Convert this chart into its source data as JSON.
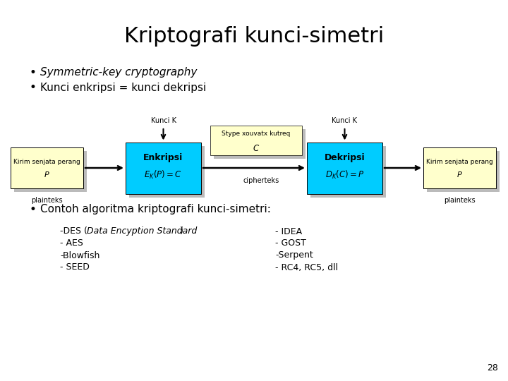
{
  "title": "Kriptografi kunci-simetri",
  "bullet1": "Symmetric-key cryptography",
  "bullet2": "Kunci enkripsi = kunci dekripsi",
  "bullet3": "Contoh algoritma kriptografi kunci-simetri:",
  "kunci_k": "Kunci K",
  "cipher_label_line1": "Stype xouvatx kutreq",
  "cipher_label_line2": "C",
  "cipherteks": "cipherteks",
  "plainteks": "plainteks",
  "enkripsi_title": "Enkripsi",
  "enkripsi_formula": "$E_K(P) = C$",
  "dekripsi_title": "Dekripsi",
  "dekripsi_formula": "$D_K(C) = P$",
  "left_box_line1": "Kirim senjata perang",
  "left_box_line2": "P",
  "right_box_line1": "Kirim senjata perang",
  "right_box_line2": "P",
  "algo_col1_item0": "-DES (",
  "algo_col1_item0_italic": "Data Encyption Standard",
  "algo_col1_item0_end": ")",
  "algo_col1": [
    "-DES (Data Encyption Standard)",
    "- AES",
    "-Blowfish",
    "- SEED"
  ],
  "algo_col2": [
    "- IDEA",
    "- GOST",
    "-Serpent",
    "- RC4, RC5, dll"
  ],
  "page_num": "28",
  "bg_color": "#ffffff",
  "box_cyan": "#00ccff",
  "box_yellow": "#ffffcc",
  "shadow_color": "#bbbbbb",
  "title_fontsize": 22,
  "body_fontsize": 11,
  "diagram_fontsize": 8,
  "algo_fontsize": 9
}
